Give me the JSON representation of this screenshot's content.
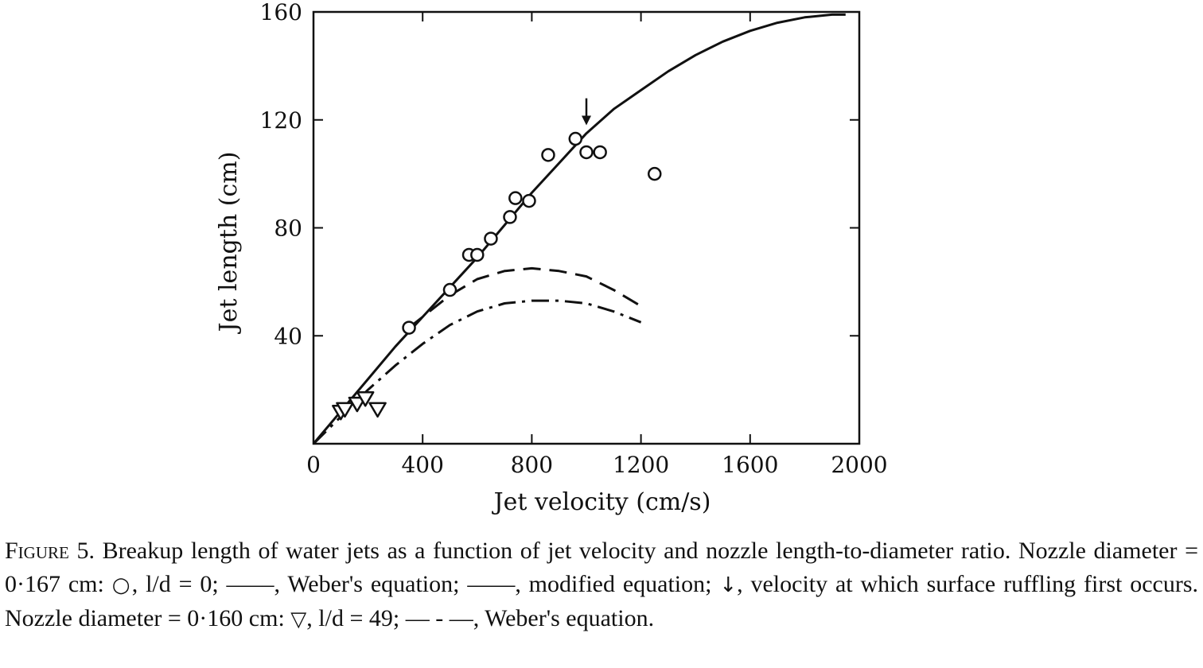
{
  "chart_data": {
    "type": "line",
    "xlabel": "Jet velocity (cm/s)",
    "ylabel": "Jet length (cm)",
    "xlim": [
      0,
      2000
    ],
    "ylim": [
      0,
      160
    ],
    "x_ticks": [
      0,
      400,
      800,
      1200,
      1600,
      2000
    ],
    "x_tick_labels": [
      "0",
      "400",
      "800",
      "1200",
      "1600",
      "2000"
    ],
    "y_ticks": [
      40,
      80,
      120,
      160
    ],
    "y_tick_labels": [
      "40",
      "80",
      "120",
      "160"
    ],
    "grid": false,
    "legend": "none",
    "series": [
      {
        "style": "solid",
        "x": [
          0,
          100,
          200,
          300,
          400,
          500,
          600,
          700,
          800,
          900,
          1000,
          1100,
          1200,
          1300,
          1400,
          1500,
          1600,
          1700,
          1800,
          1900,
          1950
        ],
        "values": [
          0,
          12,
          24,
          36,
          47,
          58,
          69,
          81,
          93,
          104,
          115,
          124,
          131,
          138,
          144,
          149,
          153,
          156,
          158,
          159,
          159
        ]
      },
      {
        "style": "dashed",
        "x": [
          350,
          400,
          500,
          600,
          700,
          800,
          900,
          1000,
          1100,
          1200
        ],
        "values": [
          43,
          47,
          55,
          61,
          64,
          65,
          64,
          62,
          57,
          51
        ]
      },
      {
        "style": "dash-dot",
        "x": [
          0,
          100,
          200,
          300,
          400,
          500,
          600,
          700,
          800,
          900,
          1000,
          1100,
          1200
        ],
        "values": [
          0,
          10,
          20,
          29,
          37,
          44,
          49,
          52,
          53,
          53,
          52,
          49,
          45
        ]
      },
      {
        "style": "circle-markers",
        "x": [
          350,
          500,
          570,
          600,
          650,
          720,
          740,
          790,
          860,
          960,
          1000,
          1050,
          1250
        ],
        "values": [
          43,
          57,
          70,
          70,
          76,
          84,
          91,
          90,
          107,
          113,
          108,
          108,
          100
        ]
      },
      {
        "style": "triangle-markers",
        "x": [
          100,
          115,
          160,
          190,
          235
        ],
        "values": [
          12,
          13,
          15,
          17,
          13
        ]
      }
    ],
    "annotations": [
      {
        "type": "down-arrow",
        "x": 1000,
        "y_tip": 118,
        "y_tail": 128
      }
    ]
  },
  "caption": {
    "lead": "Figure 5.",
    "part1": " Breakup length of water jets as a function of jet velocity and nozzle length-to-diameter ratio. Nozzle diameter = 0·167 cm: ",
    "sym_circle": "○",
    "part2": ", l/d = 0; ––––, Weber's equation; ——, modified equation; ",
    "sym_arrow": "↓",
    "part3": ", velocity at which surface ruffling first occurs. Nozzle diameter = 0·160 cm: ",
    "sym_triangle": "▽",
    "part4": ", l/d = 49; — - —, Weber's equation."
  }
}
